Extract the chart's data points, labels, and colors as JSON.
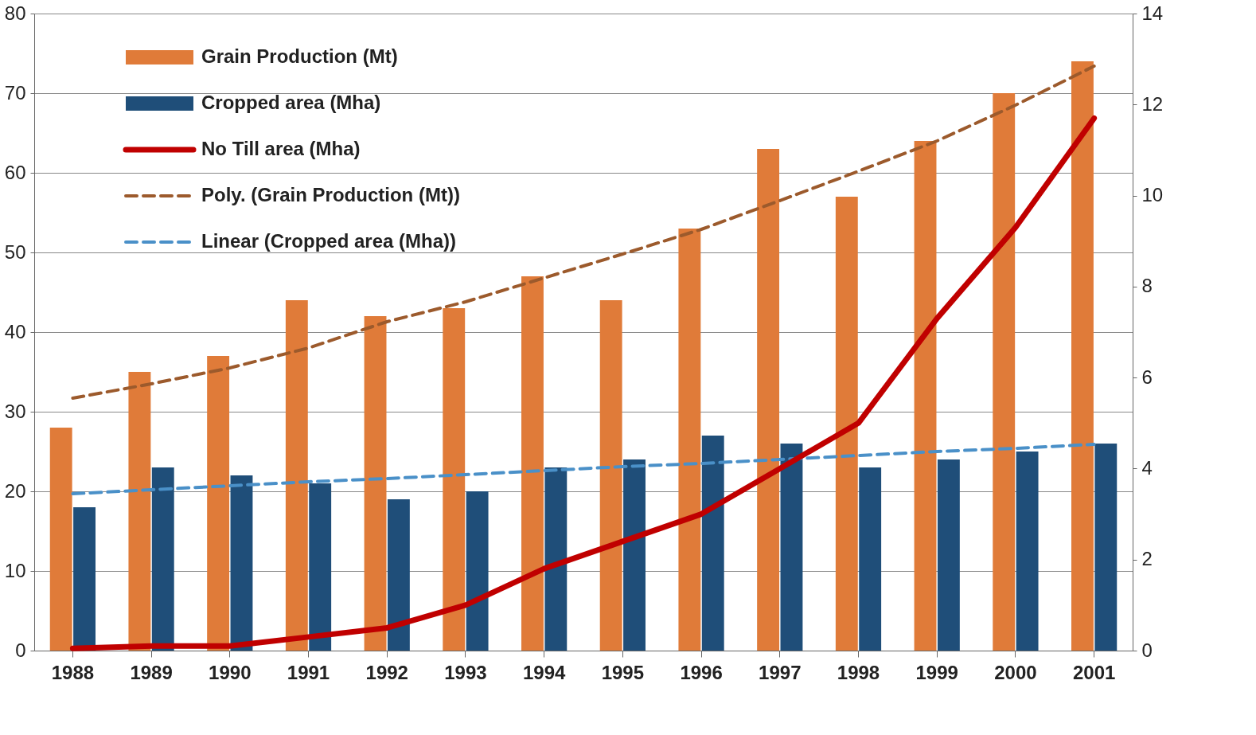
{
  "chart_data": {
    "type": "bar",
    "categories": [
      "1988",
      "1989",
      "1990",
      "1991",
      "1992",
      "1993",
      "1994",
      "1995",
      "1996",
      "1997",
      "1998",
      "1999",
      "2000",
      "2001"
    ],
    "series": [
      {
        "name": "Grain Production  (Mt)",
        "color": "#e07b39",
        "values": [
          28,
          35,
          37,
          44,
          42,
          43,
          47,
          44,
          53,
          63,
          57,
          64,
          70,
          74
        ]
      },
      {
        "name": "Cropped area (Mha)",
        "color": "#1f4e79",
        "values": [
          18,
          23,
          22,
          21,
          19,
          20,
          23,
          24,
          27,
          26,
          23,
          24,
          25,
          26
        ]
      },
      {
        "name": "No Till area (Mha)",
        "type": "line",
        "axis": "y2",
        "color": "#c00000",
        "line_style": "solid",
        "values": [
          0.05,
          0.1,
          0.1,
          0.3,
          0.5,
          1.0,
          1.8,
          2.4,
          3.0,
          4.0,
          5.0,
          7.3,
          9.3,
          11.7
        ]
      },
      {
        "name": "Poly. (Grain Production  (Mt))",
        "type": "line",
        "color": "#9c5a2c",
        "line_style": "dashed",
        "values": [
          31.7,
          33.5,
          35.5,
          38,
          41.3,
          43.8,
          46.8,
          49.8,
          52.9,
          56.5,
          60.2,
          64,
          68.5,
          73.4
        ]
      },
      {
        "name": "Linear (Cropped area (Mha))",
        "type": "line",
        "color": "#4a90c8",
        "line_style": "dashed",
        "values": [
          19.7,
          20.2,
          20.7,
          21.2,
          21.6,
          22.1,
          22.6,
          23.1,
          23.5,
          24,
          24.5,
          25,
          25.4,
          25.9
        ]
      }
    ],
    "ylim": [
      0,
      80
    ],
    "yticks": [
      0,
      10,
      20,
      30,
      40,
      50,
      60,
      70,
      80
    ],
    "y2lim": [
      0,
      14
    ],
    "y2ticks": [
      0,
      2,
      4,
      6,
      8,
      10,
      12,
      14
    ],
    "grid": "y",
    "legend": "top left"
  }
}
